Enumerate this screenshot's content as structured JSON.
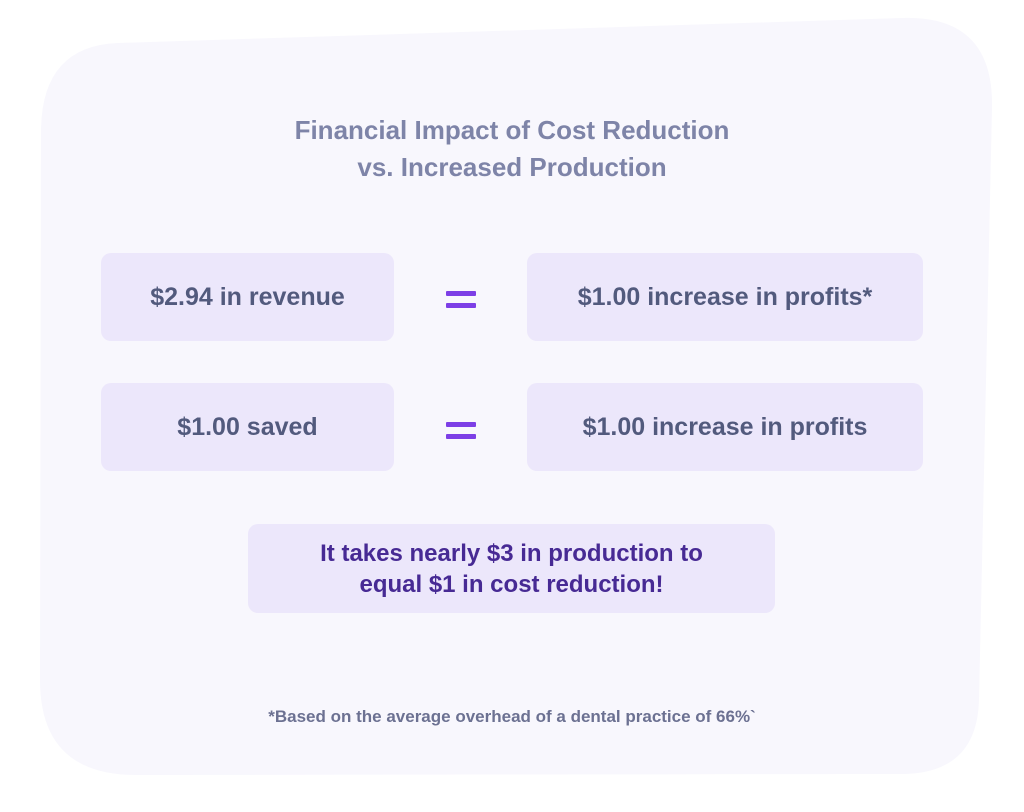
{
  "colors": {
    "card_background": "#f8f7fd",
    "box_background": "#ece7fb",
    "title": "#7e84a8",
    "box_text": "#525a7d",
    "equals_sign": "#7d3fe6",
    "callout_text": "#472a94",
    "footnote": "#6c7192"
  },
  "title": {
    "line1": "Financial Impact of Cost Reduction",
    "line2": "vs. Increased Production"
  },
  "rows": [
    {
      "left": "$2.94 in revenue",
      "operator_icon": "equals-sign-icon",
      "right": "$1.00 increase in profits*"
    },
    {
      "left": "$1.00 saved",
      "operator_icon": "equals-sign-icon",
      "right": "$1.00 increase in profits"
    }
  ],
  "callout": {
    "line1": "It takes nearly $3 in production to",
    "line2": "equal $1 in cost reduction!"
  },
  "footnote": "*Based on the average overhead of a dental practice of 66%`"
}
